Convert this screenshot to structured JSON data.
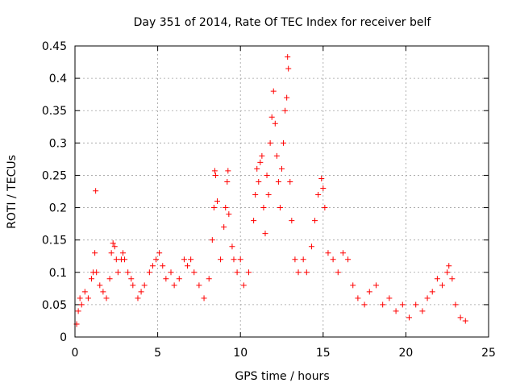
{
  "chart_data": {
    "type": "scatter",
    "title": "Day 351 of 2014, Rate Of TEC Index for receiver belf",
    "xlabel": "GPS time / hours",
    "ylabel": "ROTI / TECUs",
    "xlim": [
      0,
      25
    ],
    "ylim": [
      0,
      0.45
    ],
    "x_ticks": [
      0,
      5,
      10,
      15,
      20,
      25
    ],
    "y_ticks": [
      0,
      0.05,
      0.1,
      0.15,
      0.2,
      0.25,
      0.3,
      0.35,
      0.4,
      0.45
    ],
    "x_tick_labels": [
      "0",
      "5",
      "10",
      "15",
      "20",
      "25"
    ],
    "y_tick_labels": [
      "0",
      "0.05",
      "0.1",
      "0.15",
      "0.2",
      "0.25",
      "0.3",
      "0.35",
      "0.4",
      "0.45"
    ],
    "grid": true,
    "marker": "+",
    "marker_color": "#ff0000",
    "series": [
      {
        "name": "ROTI",
        "points": [
          [
            0.1,
            0.02
          ],
          [
            0.2,
            0.04
          ],
          [
            0.3,
            0.06
          ],
          [
            0.4,
            0.05
          ],
          [
            0.6,
            0.07
          ],
          [
            0.8,
            0.06
          ],
          [
            1.0,
            0.09
          ],
          [
            1.1,
            0.1
          ],
          [
            1.2,
            0.13
          ],
          [
            1.25,
            0.226
          ],
          [
            1.3,
            0.1
          ],
          [
            1.5,
            0.08
          ],
          [
            1.7,
            0.07
          ],
          [
            1.9,
            0.06
          ],
          [
            2.1,
            0.09
          ],
          [
            2.2,
            0.13
          ],
          [
            2.3,
            0.145
          ],
          [
            2.4,
            0.14
          ],
          [
            2.5,
            0.12
          ],
          [
            2.6,
            0.1
          ],
          [
            2.8,
            0.12
          ],
          [
            2.9,
            0.13
          ],
          [
            3.0,
            0.12
          ],
          [
            3.2,
            0.1
          ],
          [
            3.4,
            0.09
          ],
          [
            3.5,
            0.08
          ],
          [
            3.8,
            0.06
          ],
          [
            4.0,
            0.07
          ],
          [
            4.2,
            0.08
          ],
          [
            4.5,
            0.1
          ],
          [
            4.7,
            0.11
          ],
          [
            4.9,
            0.12
          ],
          [
            5.1,
            0.13
          ],
          [
            5.3,
            0.11
          ],
          [
            5.5,
            0.09
          ],
          [
            5.8,
            0.1
          ],
          [
            6.0,
            0.08
          ],
          [
            6.3,
            0.09
          ],
          [
            6.6,
            0.12
          ],
          [
            6.8,
            0.11
          ],
          [
            7.0,
            0.12
          ],
          [
            7.2,
            0.1
          ],
          [
            7.5,
            0.08
          ],
          [
            7.8,
            0.06
          ],
          [
            8.1,
            0.09
          ],
          [
            8.3,
            0.15
          ],
          [
            8.4,
            0.2
          ],
          [
            8.45,
            0.257
          ],
          [
            8.5,
            0.25
          ],
          [
            8.6,
            0.21
          ],
          [
            8.8,
            0.12
          ],
          [
            9.0,
            0.17
          ],
          [
            9.1,
            0.2
          ],
          [
            9.2,
            0.24
          ],
          [
            9.25,
            0.257
          ],
          [
            9.3,
            0.19
          ],
          [
            9.5,
            0.14
          ],
          [
            9.6,
            0.12
          ],
          [
            9.8,
            0.1
          ],
          [
            10.0,
            0.12
          ],
          [
            10.2,
            0.08
          ],
          [
            10.5,
            0.1
          ],
          [
            10.8,
            0.18
          ],
          [
            10.9,
            0.22
          ],
          [
            11.0,
            0.26
          ],
          [
            11.1,
            0.24
          ],
          [
            11.2,
            0.27
          ],
          [
            11.3,
            0.28
          ],
          [
            11.4,
            0.2
          ],
          [
            11.5,
            0.16
          ],
          [
            11.6,
            0.25
          ],
          [
            11.7,
            0.22
          ],
          [
            11.8,
            0.3
          ],
          [
            11.9,
            0.34
          ],
          [
            12.0,
            0.38
          ],
          [
            12.1,
            0.33
          ],
          [
            12.2,
            0.28
          ],
          [
            12.3,
            0.24
          ],
          [
            12.4,
            0.2
          ],
          [
            12.5,
            0.26
          ],
          [
            12.6,
            0.3
          ],
          [
            12.7,
            0.35
          ],
          [
            12.8,
            0.37
          ],
          [
            12.85,
            0.433
          ],
          [
            12.9,
            0.415
          ],
          [
            13.0,
            0.24
          ],
          [
            13.1,
            0.18
          ],
          [
            13.3,
            0.12
          ],
          [
            13.5,
            0.1
          ],
          [
            13.8,
            0.12
          ],
          [
            14.0,
            0.1
          ],
          [
            14.3,
            0.14
          ],
          [
            14.5,
            0.18
          ],
          [
            14.7,
            0.22
          ],
          [
            14.9,
            0.245
          ],
          [
            15.0,
            0.23
          ],
          [
            15.1,
            0.2
          ],
          [
            15.3,
            0.13
          ],
          [
            15.6,
            0.12
          ],
          [
            15.9,
            0.1
          ],
          [
            16.2,
            0.13
          ],
          [
            16.5,
            0.12
          ],
          [
            16.8,
            0.08
          ],
          [
            17.1,
            0.06
          ],
          [
            17.5,
            0.05
          ],
          [
            17.8,
            0.07
          ],
          [
            18.2,
            0.08
          ],
          [
            18.6,
            0.05
          ],
          [
            19.0,
            0.06
          ],
          [
            19.4,
            0.04
          ],
          [
            19.8,
            0.05
          ],
          [
            20.2,
            0.03
          ],
          [
            20.6,
            0.05
          ],
          [
            21.0,
            0.04
          ],
          [
            21.3,
            0.06
          ],
          [
            21.6,
            0.07
          ],
          [
            21.9,
            0.09
          ],
          [
            22.2,
            0.08
          ],
          [
            22.5,
            0.1
          ],
          [
            22.6,
            0.11
          ],
          [
            22.8,
            0.09
          ],
          [
            23.0,
            0.05
          ],
          [
            23.3,
            0.03
          ],
          [
            23.6,
            0.025
          ]
        ]
      }
    ]
  }
}
